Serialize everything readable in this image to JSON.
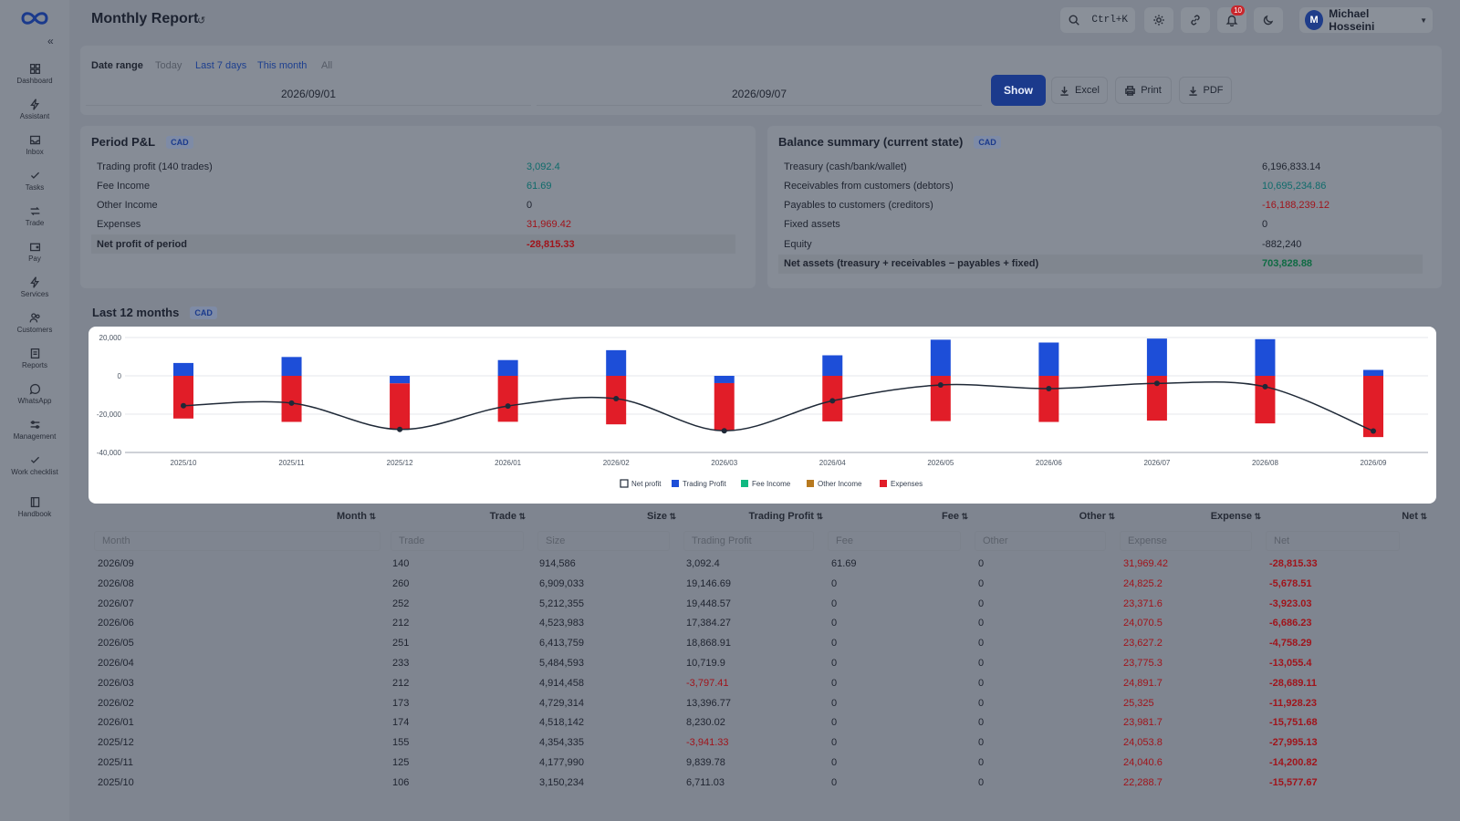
{
  "app": {
    "title": "Monthly Report",
    "title_icon": "history-icon"
  },
  "sidebar": {
    "collapse_label": "«",
    "items": [
      {
        "label": "Dashboard",
        "icon": "dashboard-icon"
      },
      {
        "label": "Assistant",
        "icon": "bolt-icon"
      },
      {
        "label": "Inbox",
        "icon": "inbox-icon"
      },
      {
        "label": "Tasks",
        "icon": "check-icon"
      },
      {
        "label": "Trade",
        "icon": "swap-icon"
      },
      {
        "label": "Pay",
        "icon": "wallet-icon"
      },
      {
        "label": "Services",
        "icon": "bolt-icon"
      },
      {
        "label": "Customers",
        "icon": "users-icon"
      },
      {
        "label": "Reports",
        "icon": "report-icon"
      },
      {
        "label": "WhatsApp",
        "icon": "chat-icon"
      },
      {
        "label": "Management",
        "icon": "sliders-icon"
      },
      {
        "label": "Work checklist",
        "icon": "check-icon"
      },
      {
        "label": "Handbook",
        "icon": "book-icon"
      }
    ]
  },
  "header": {
    "search_shortcut": "Ctrl+K",
    "notifications_count": "10",
    "user": {
      "initial": "M",
      "name": "Michael Hosseini"
    }
  },
  "filters": {
    "date_range_label": "Date range",
    "options": [
      "Today",
      "Last 7 days",
      "This month",
      "All"
    ],
    "start_date": "2026/09/01",
    "end_date": "2026/09/07",
    "show_label": "Show",
    "excel_label": "Excel",
    "print_label": "Print",
    "pdf_label": "PDF"
  },
  "pnl": {
    "title": "Period P&L",
    "currency": "CAD",
    "rows": [
      {
        "label": "Trading profit (140 trades)",
        "value": "3,092.4"
      },
      {
        "label": "Fee Income",
        "value": "61.69"
      },
      {
        "label": "Other Income",
        "value": "0"
      },
      {
        "label": "Expenses",
        "value": "31,969.42"
      },
      {
        "label": "Net profit of period",
        "value": "-28,815.33"
      }
    ]
  },
  "balance": {
    "title": "Balance summary (current state)",
    "currency": "CAD",
    "rows": [
      {
        "label": "Treasury (cash/bank/wallet)",
        "value": "6,196,833.14"
      },
      {
        "label": "Receivables from customers (debtors)",
        "value": "10,695,234.86"
      },
      {
        "label": "Payables to customers (creditors)",
        "value": "-16,188,239.12"
      },
      {
        "label": "Fixed assets",
        "value": "0"
      },
      {
        "label": "Equity",
        "value": "-882,240"
      },
      {
        "label": "Net assets (treasury + receivables − payables + fixed)",
        "value": "703,828.88"
      }
    ]
  },
  "last12": {
    "title": "Last 12 months",
    "currency": "CAD"
  },
  "chart_data": {
    "type": "bar",
    "categories": [
      "2025/10",
      "2025/11",
      "2025/12",
      "2026/01",
      "2026/02",
      "2026/03",
      "2026/04",
      "2026/05",
      "2026/06",
      "2026/07",
      "2026/08",
      "2026/09"
    ],
    "series": [
      {
        "name": "Net profit",
        "type": "line",
        "color": "#1f2937",
        "values": [
          -15577.67,
          -14200.82,
          -27995.13,
          -15751.68,
          -11928.23,
          -28689.11,
          -13055.4,
          -4758.29,
          -6686.23,
          -3923.03,
          -5678.51,
          -28815.33
        ]
      },
      {
        "name": "Trading Profit",
        "color": "#1d4ed8",
        "values": [
          6711.03,
          9839.78,
          -3941.33,
          8230.02,
          13396.77,
          -3797.41,
          10719.9,
          18868.91,
          17384.27,
          19448.57,
          19146.69,
          3092.4
        ]
      },
      {
        "name": "Fee Income",
        "color": "#10b981",
        "values": [
          0,
          0,
          0,
          0,
          0,
          0,
          0,
          0,
          0,
          0,
          0,
          61.69
        ]
      },
      {
        "name": "Other Income",
        "color": "#b7791f",
        "values": [
          0,
          0,
          0,
          0,
          0,
          0,
          0,
          0,
          0,
          0,
          0,
          0
        ]
      },
      {
        "name": "Expenses",
        "color": "#e11d28",
        "values": [
          -22288.7,
          -24040.6,
          -24053.8,
          -23981.7,
          -25325,
          -24891.7,
          -23775.3,
          -23627.2,
          -24070.5,
          -23371.6,
          -24825.2,
          -31969.42
        ]
      }
    ],
    "yticks": [
      "20,000",
      "0",
      "-20,000",
      "-40,000"
    ],
    "ylim": [
      -40000,
      20000
    ],
    "grid": true,
    "legend_position": "bottom"
  },
  "table": {
    "columns": [
      "Month",
      "Trade",
      "Size",
      "Trading Profit",
      "Fee",
      "Other",
      "Expense",
      "Net"
    ],
    "filters": [
      "Month",
      "Trade",
      "Size",
      "Trading Profit",
      "Fee",
      "Other",
      "Expense",
      "Net"
    ],
    "rows": [
      [
        "2026/09",
        "140",
        "914,586",
        "3,092.4",
        "61.69",
        "0",
        "31,969.42",
        "-28,815.33"
      ],
      [
        "2026/08",
        "260",
        "6,909,033",
        "19,146.69",
        "0",
        "0",
        "24,825.2",
        "-5,678.51"
      ],
      [
        "2026/07",
        "252",
        "5,212,355",
        "19,448.57",
        "0",
        "0",
        "23,371.6",
        "-3,923.03"
      ],
      [
        "2026/06",
        "212",
        "4,523,983",
        "17,384.27",
        "0",
        "0",
        "24,070.5",
        "-6,686.23"
      ],
      [
        "2026/05",
        "251",
        "6,413,759",
        "18,868.91",
        "0",
        "0",
        "23,627.2",
        "-4,758.29"
      ],
      [
        "2026/04",
        "233",
        "5,484,593",
        "10,719.9",
        "0",
        "0",
        "23,775.3",
        "-13,055.4"
      ],
      [
        "2026/03",
        "212",
        "4,914,458",
        "-3,797.41",
        "0",
        "0",
        "24,891.7",
        "-28,689.11"
      ],
      [
        "2026/02",
        "173",
        "4,729,314",
        "13,396.77",
        "0",
        "0",
        "25,325",
        "-11,928.23"
      ],
      [
        "2026/01",
        "174",
        "4,518,142",
        "8,230.02",
        "0",
        "0",
        "23,981.7",
        "-15,751.68"
      ],
      [
        "2025/12",
        "155",
        "4,354,335",
        "-3,941.33",
        "0",
        "0",
        "24,053.8",
        "-27,995.13"
      ],
      [
        "2025/11",
        "125",
        "4,177,990",
        "9,839.78",
        "0",
        "0",
        "24,040.6",
        "-14,200.82"
      ],
      [
        "2025/10",
        "106",
        "3,150,234",
        "6,711.03",
        "0",
        "0",
        "22,288.7",
        "-15,577.67"
      ]
    ]
  }
}
